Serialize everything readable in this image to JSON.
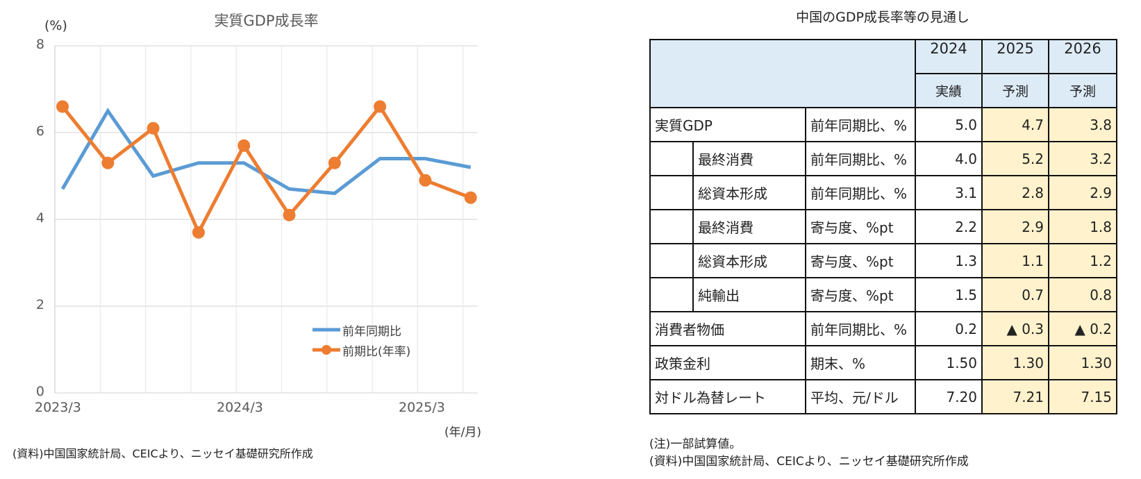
{
  "chart": {
    "title": "実質GDP成長率",
    "y_unit": "(%)",
    "x_unit": "(年/月)",
    "source": "(資料)中国国家統計局、CEICより、ニッセイ基礎研究所作成",
    "y_ticks": [
      "0",
      "2",
      "4",
      "6",
      "8"
    ],
    "x_tick_labels": [
      "2023/3",
      "2024/3",
      "2025/3"
    ],
    "legend": [
      {
        "label": "前年同期比",
        "color": "#5b9bd5"
      },
      {
        "label": "前期比(年率)",
        "color": "#ed7d31"
      }
    ]
  },
  "chart_data": {
    "type": "line",
    "title": "実質GDP成長率",
    "xlabel": "(年/月)",
    "ylabel": "(%)",
    "ylim": [
      0,
      8
    ],
    "grid": true,
    "legend_position": "inside-lower-right",
    "x": [
      "2023/3",
      "2023/6",
      "2023/9",
      "2023/12",
      "2024/3",
      "2024/6",
      "2024/9",
      "2024/12",
      "2025/3",
      "2025/6"
    ],
    "x_tick_labels": [
      "2023/3",
      "2024/3",
      "2025/3"
    ],
    "series": [
      {
        "name": "前年同期比",
        "color": "#5b9bd5",
        "marker": "none",
        "values": [
          4.7,
          6.5,
          5.0,
          5.3,
          5.3,
          4.7,
          4.6,
          5.4,
          5.4,
          5.2
        ]
      },
      {
        "name": "前期比(年率)",
        "color": "#ed7d31",
        "marker": "circle",
        "values": [
          6.6,
          5.3,
          6.1,
          3.7,
          5.7,
          4.1,
          5.3,
          6.6,
          4.9,
          4.5
        ]
      }
    ]
  },
  "table": {
    "title": "中国のGDP成長率等の見通し",
    "years": [
      "2024",
      "2025",
      "2026"
    ],
    "year_types": [
      "実績",
      "予測",
      "予測"
    ],
    "rows": [
      {
        "label": "実質GDP",
        "indent": false,
        "unit": "前年同期比、%",
        "values": [
          "5.0",
          "4.7",
          "3.8"
        ]
      },
      {
        "label": "最終消費",
        "indent": true,
        "unit": "前年同期比、%",
        "values": [
          "4.0",
          "5.2",
          "3.2"
        ]
      },
      {
        "label": "総資本形成",
        "indent": true,
        "unit": "前年同期比、%",
        "values": [
          "3.1",
          "2.8",
          "2.9"
        ]
      },
      {
        "label": "最終消費",
        "indent": true,
        "unit": "寄与度、%pt",
        "values": [
          "2.2",
          "2.9",
          "1.8"
        ]
      },
      {
        "label": "総資本形成",
        "indent": true,
        "unit": "寄与度、%pt",
        "values": [
          "1.3",
          "1.1",
          "1.2"
        ]
      },
      {
        "label": "純輸出",
        "indent": true,
        "unit": "寄与度、%pt",
        "values": [
          "1.5",
          "0.7",
          "0.8"
        ]
      },
      {
        "label": "消費者物価",
        "indent": false,
        "unit": "前年同期比、%",
        "values": [
          "0.2",
          "▲ 0.3",
          "▲ 0.2"
        ]
      },
      {
        "label": "政策金利",
        "indent": false,
        "unit": "期末、%",
        "values": [
          "1.50",
          "1.30",
          "1.30"
        ]
      },
      {
        "label": "対ドル為替レート",
        "indent": false,
        "unit": "平均、元/ドル",
        "values": [
          "7.20",
          "7.21",
          "7.15"
        ]
      }
    ],
    "note": "(注)一部試算値。",
    "source": "(資料)中国国家統計局、CEICより、ニッセイ基礎研究所作成",
    "colors": {
      "header_bg": "#ddebf7",
      "forecast_bg": "#fff2cc"
    }
  }
}
